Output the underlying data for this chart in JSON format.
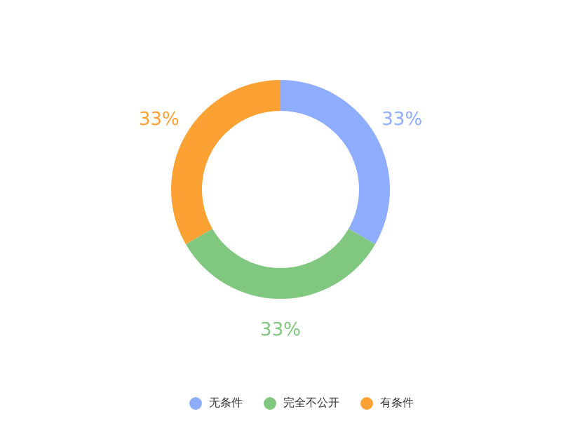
{
  "chart_data": {
    "type": "donut",
    "categories": [
      "无条件",
      "完全不公开",
      "有条件"
    ],
    "values": [
      33,
      33,
      33
    ],
    "colors": [
      "#8fadff",
      "#80c880",
      "#fca234"
    ],
    "value_labels": [
      "33%",
      "33%",
      "33%"
    ],
    "legend": "bottom"
  }
}
